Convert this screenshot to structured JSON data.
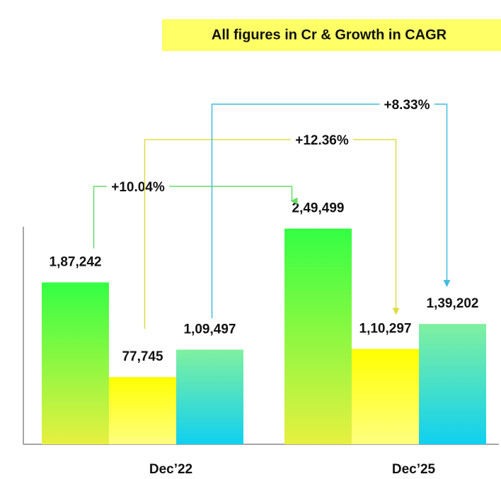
{
  "chart_data": {
    "type": "bar",
    "subtitle": "All figures in Cr & Growth in CAGR",
    "categories": [
      "Dec’22",
      "Dec’25"
    ],
    "ylim": [
      0,
      250000
    ],
    "series": [
      {
        "color": "#33ff44",
        "line_color": "#66dd66",
        "values": [
          187242,
          249499
        ],
        "value_labels": [
          "1,87,242",
          "2,49,499"
        ],
        "growth": "+10.04%"
      },
      {
        "color": "#ffff00",
        "line_color": "#dddd44",
        "values": [
          77745,
          110297
        ],
        "value_labels": [
          "77,745",
          "1,10,297"
        ],
        "growth": "+12.36%"
      },
      {
        "color": "#80f0a0",
        "line_color": "#44bbdd",
        "values": [
          109497,
          139202
        ],
        "value_labels": [
          "1,09,497",
          "1,39,202"
        ],
        "growth": "+8.33%"
      }
    ]
  }
}
